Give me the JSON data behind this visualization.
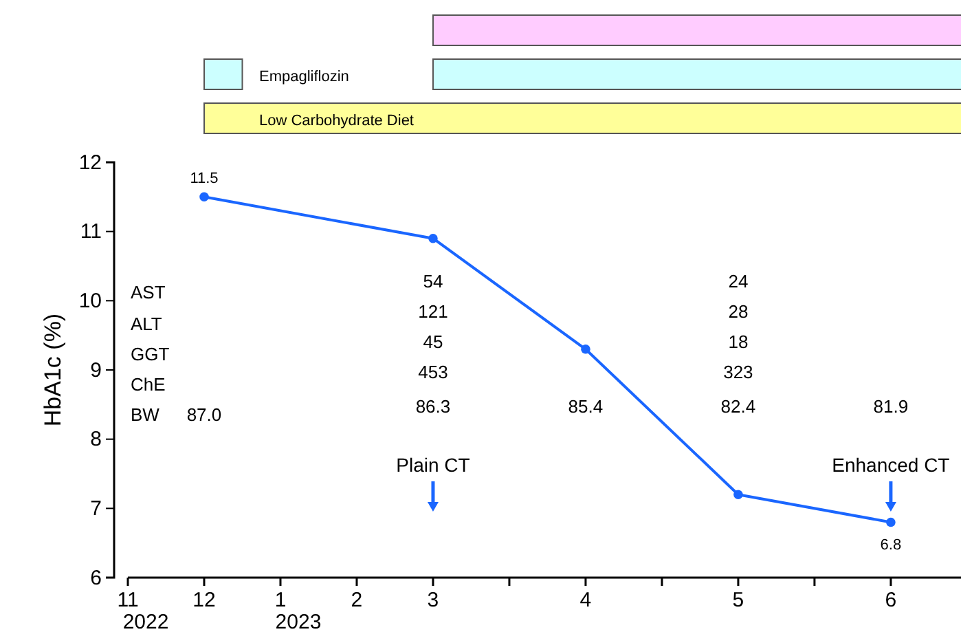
{
  "chart_data": {
    "type": "line",
    "ylabel": "HbA1c (%)",
    "categories": [
      "11\n2022",
      "12",
      "1\n2023",
      "2",
      "3",
      null,
      "4",
      null,
      "5",
      null,
      "6"
    ],
    "series": [
      {
        "color": "#1a66ff",
        "x": [
          "12",
          "3",
          "4",
          "5",
          "6"
        ],
        "values": [
          11.5,
          10.9,
          9.3,
          7.2,
          6.8
        ],
        "value_labels": [
          "11.5",
          null,
          null,
          null,
          "6.8"
        ]
      }
    ],
    "marker": "circle",
    "grid": false,
    "ylim": [
      6,
      12
    ],
    "yticks": [
      6,
      7,
      8,
      9,
      10,
      11,
      12
    ],
    "annotations": [
      "Empagliflozin",
      "Low Carbohydrate Diet",
      "AST",
      "ALT",
      "GGT",
      "ChE",
      "BW",
      "87.0",
      "54",
      "121",
      "45",
      "453",
      "86.3",
      "85.4",
      "24",
      "28",
      "18",
      "323",
      "82.4",
      "81.9",
      "Plain CT",
      "Enhanced CT"
    ]
  }
}
